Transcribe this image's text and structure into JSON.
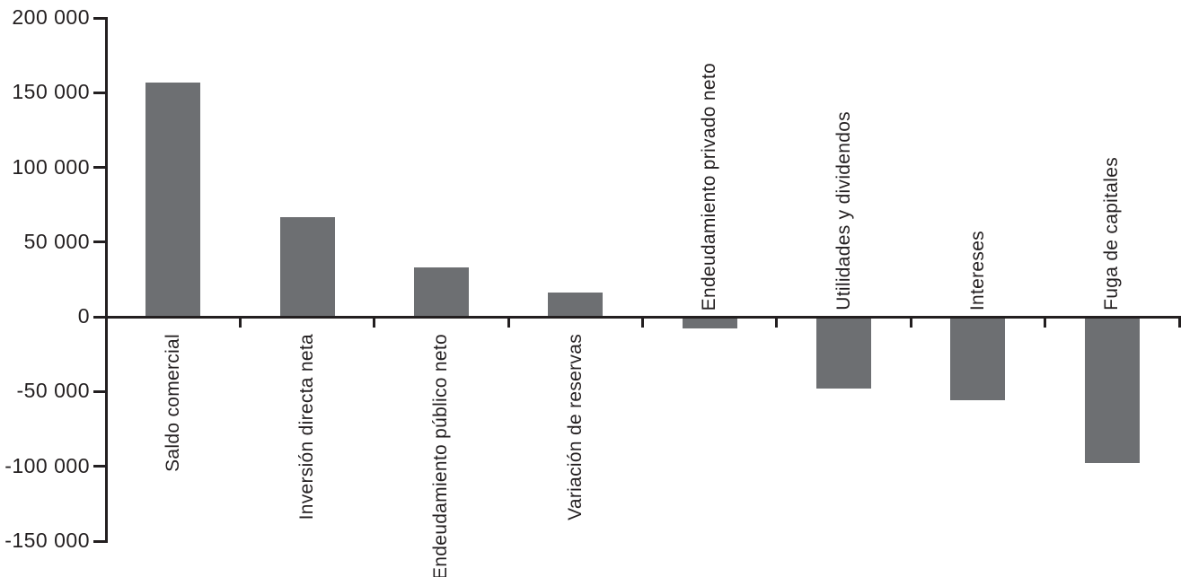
{
  "chart_data": {
    "type": "bar",
    "title": "",
    "xlabel": "",
    "ylabel": "",
    "categories": [
      "Saldo comercial",
      "Inversión directa neta",
      "Endeudamiento público neto",
      "Variación de reservas",
      "Endeudamiento privado neto",
      "Utilidades y dividendos",
      "Intereses",
      "Fuga de capitales"
    ],
    "values": [
      157000,
      67000,
      33000,
      16000,
      -7500,
      -48000,
      -56000,
      -98000
    ],
    "ylim": [
      -150000,
      200000
    ],
    "yticks": [
      {
        "value": 200000,
        "label": "200 000"
      },
      {
        "value": 150000,
        "label": "150 000"
      },
      {
        "value": 100000,
        "label": "100 000"
      },
      {
        "value": 50000,
        "label": "50 000"
      },
      {
        "value": 0,
        "label": "0"
      },
      {
        "value": -50000,
        "label": "-50 000"
      },
      {
        "value": -100000,
        "label": "-100 000"
      },
      {
        "value": -150000,
        "label": "-150 000"
      }
    ],
    "grid": false,
    "legend": null,
    "label_rotation": "90deg-counterclockwise",
    "colors": {
      "bar": "#6d6f72",
      "axis": "#231f20",
      "text": "#231f20",
      "background": "#ffffff"
    }
  }
}
